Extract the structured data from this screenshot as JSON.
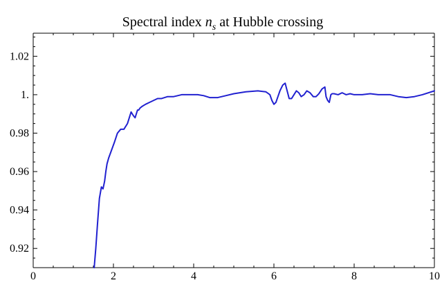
{
  "chart_data": {
    "type": "line",
    "title": {
      "prefix": "Spectral index ",
      "symbol": "n",
      "subscript": "s",
      "suffix": " at Hubble crossing"
    },
    "xlabel": "",
    "ylabel": "",
    "xlim": [
      0,
      10
    ],
    "ylim": [
      0.91,
      1.032
    ],
    "x_ticks": [
      0,
      2,
      4,
      6,
      8,
      10
    ],
    "y_ticks": [
      0.92,
      0.94,
      0.96,
      0.98,
      1,
      1.02
    ],
    "x_tick_labels": [
      "0",
      "2",
      "4",
      "6",
      "8",
      "10"
    ],
    "y_tick_labels": [
      "0.92",
      "0.94",
      "0.96",
      "0.98",
      "1.",
      "1.02"
    ],
    "grid": false,
    "series": [
      {
        "color": "#2020d0",
        "x": [
          1.52,
          1.56,
          1.6,
          1.65,
          1.7,
          1.74,
          1.78,
          1.81,
          1.84,
          1.88,
          1.95,
          2.02,
          2.1,
          2.18,
          2.26,
          2.35,
          2.44,
          2.5,
          2.54,
          2.57,
          2.6,
          2.63,
          2.66,
          2.72,
          2.8,
          2.9,
          3.0,
          3.1,
          3.2,
          3.35,
          3.5,
          3.7,
          3.9,
          4.1,
          4.25,
          4.4,
          4.6,
          4.8,
          5.0,
          5.3,
          5.6,
          5.8,
          5.9,
          5.95,
          6.0,
          6.05,
          6.1,
          6.15,
          6.22,
          6.28,
          6.33,
          6.38,
          6.44,
          6.5,
          6.56,
          6.62,
          6.68,
          6.75,
          6.82,
          6.9,
          6.98,
          7.05,
          7.12,
          7.2,
          7.27,
          7.3,
          7.34,
          7.38,
          7.42,
          7.45,
          7.5,
          7.6,
          7.7,
          7.75,
          7.8,
          7.9,
          8.0,
          8.2,
          8.4,
          8.6,
          8.9,
          9.1,
          9.3,
          9.5,
          9.7,
          10.0
        ],
        "y": [
          0.91,
          0.92,
          0.932,
          0.946,
          0.952,
          0.951,
          0.955,
          0.96,
          0.964,
          0.967,
          0.971,
          0.975,
          0.98,
          0.982,
          0.982,
          0.985,
          0.991,
          0.989,
          0.988,
          0.99,
          0.992,
          0.992,
          0.993,
          0.994,
          0.995,
          0.996,
          0.997,
          0.998,
          0.998,
          0.999,
          0.999,
          1.0,
          1.0,
          1.0,
          0.9995,
          0.9985,
          0.9985,
          0.9995,
          1.0005,
          1.0015,
          1.002,
          1.0015,
          1.0,
          0.997,
          0.995,
          0.996,
          0.999,
          1.002,
          1.005,
          1.006,
          1.002,
          0.998,
          0.998,
          1.0,
          1.002,
          1.001,
          0.999,
          1.0,
          1.002,
          1.001,
          0.999,
          0.999,
          1.0005,
          1.003,
          1.004,
          0.999,
          0.997,
          0.996,
          1.0,
          1.0005,
          1.0005,
          1.0,
          1.001,
          1.0005,
          1.0,
          1.0005,
          1.0,
          1.0,
          1.0005,
          1.0,
          1.0,
          0.999,
          0.9985,
          0.999,
          1.0,
          1.002
        ]
      }
    ]
  }
}
